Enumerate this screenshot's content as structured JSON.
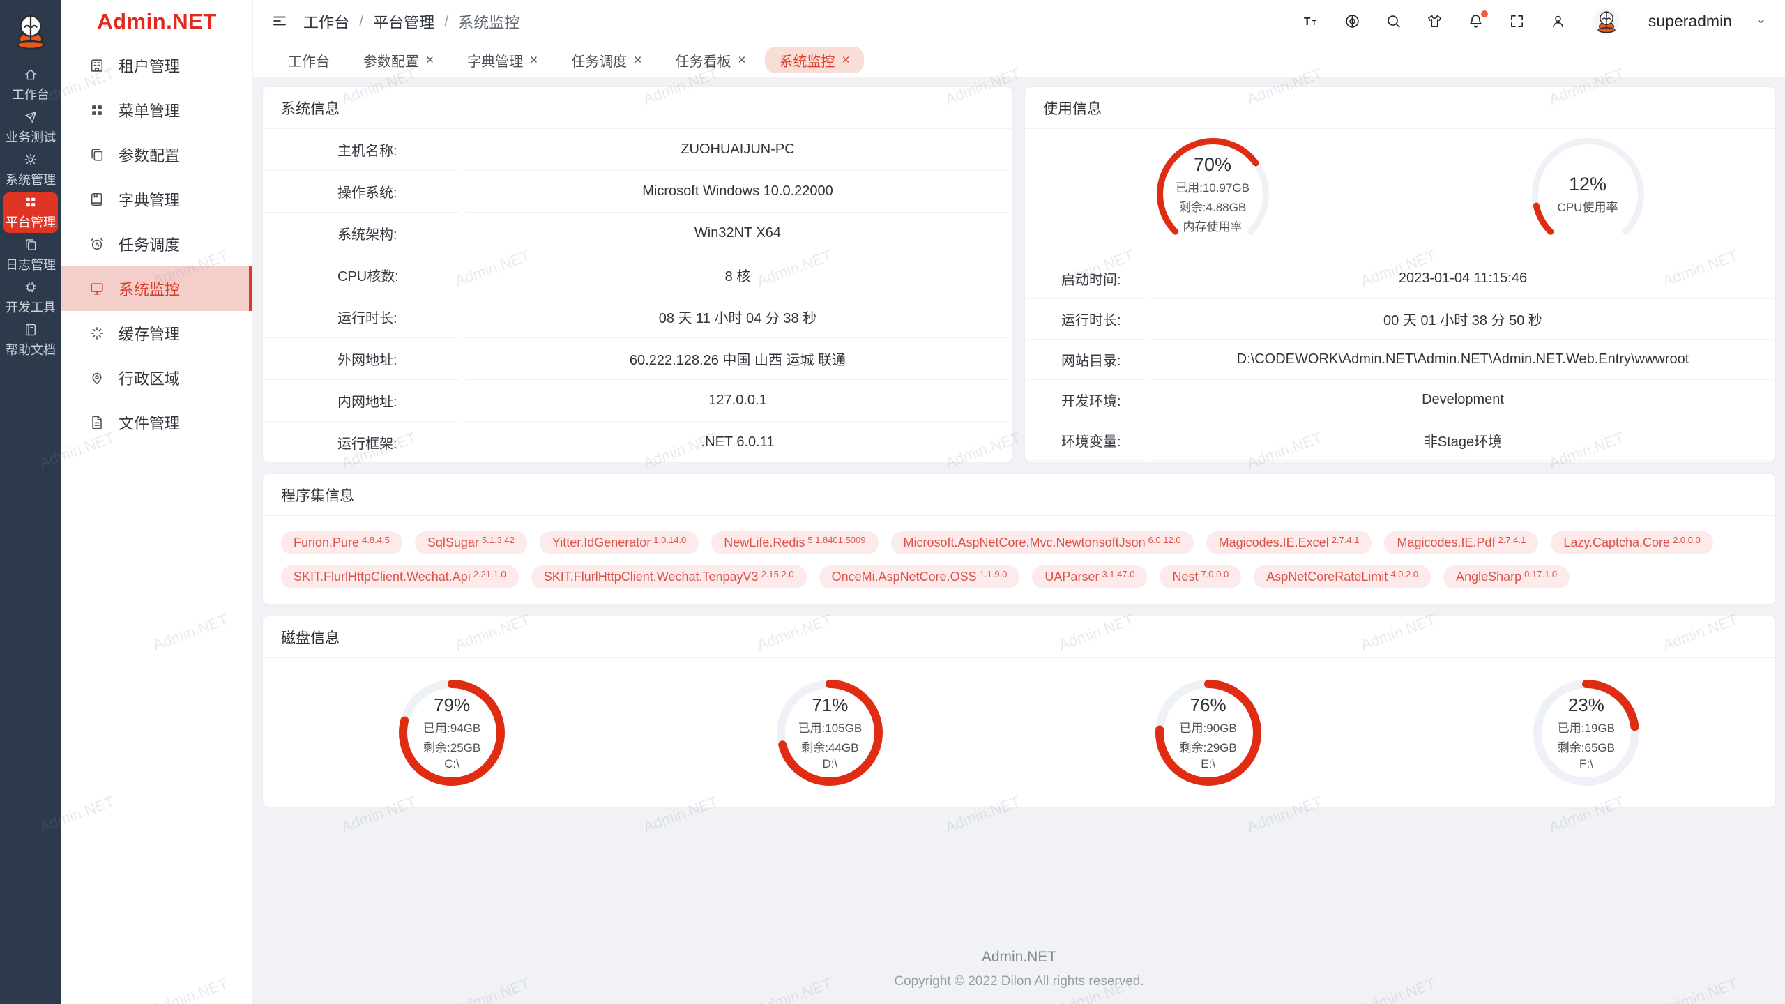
{
  "theme": {
    "accent": "#e03424",
    "ring_red": "#e02c12",
    "ring_track": "#eef1f6",
    "active_pink": "#f4cfc9",
    "tag_bg": "#fcebea",
    "tag_text": "#dd5248",
    "rail_bg": "#2d3a4c"
  },
  "watermark": "Admin.NET",
  "close_glyph": "×",
  "rail": {
    "logo_icon": "mascot",
    "items": [
      {
        "label": "工作台",
        "icon": "home",
        "active": false
      },
      {
        "label": "业务测试",
        "icon": "send",
        "active": false
      },
      {
        "label": "系统管理",
        "icon": "gear",
        "active": false
      },
      {
        "label": "平台管理",
        "icon": "grid",
        "active": true
      },
      {
        "label": "日志管理",
        "icon": "copy-docs",
        "active": false
      },
      {
        "label": "开发工具",
        "icon": "chip",
        "active": false
      },
      {
        "label": "帮助文档",
        "icon": "notebook",
        "active": false
      }
    ]
  },
  "sidebar": {
    "logo_text": "Admin.NET",
    "items": [
      {
        "label": "租户管理",
        "icon": "tenant-building",
        "active": false
      },
      {
        "label": "菜单管理",
        "icon": "menu-grid",
        "active": false
      },
      {
        "label": "参数配置",
        "icon": "params-docs",
        "active": false
      },
      {
        "label": "字典管理",
        "icon": "dict-book",
        "active": false
      },
      {
        "label": "任务调度",
        "icon": "alarm-clock",
        "active": false
      },
      {
        "label": "系统监控",
        "icon": "monitor",
        "active": true
      },
      {
        "label": "缓存管理",
        "icon": "cache-spinner",
        "active": false
      },
      {
        "label": "行政区域",
        "icon": "location-pin",
        "active": false
      },
      {
        "label": "文件管理",
        "icon": "file-doc",
        "active": false
      }
    ]
  },
  "navbar": {
    "hamburger_icon": "hamburger",
    "separator": "/",
    "breadcrumb": [
      {
        "label": "工作台"
      },
      {
        "label": "平台管理"
      },
      {
        "label": "系统监控"
      }
    ],
    "actions": [
      {
        "icon": "font-size"
      },
      {
        "icon": "language"
      },
      {
        "icon": "search"
      },
      {
        "icon": "theme-shirt"
      },
      {
        "icon": "bell",
        "badge": true
      },
      {
        "icon": "fullscreen"
      },
      {
        "icon": "profile"
      }
    ],
    "avatar_icon": "mascot",
    "username": "superadmin",
    "dropdown_icon": "chevron-down"
  },
  "tabs": [
    {
      "label": "工作台",
      "closable": false,
      "active": false
    },
    {
      "label": "参数配置",
      "closable": true,
      "active": false
    },
    {
      "label": "字典管理",
      "closable": true,
      "active": false
    },
    {
      "label": "任务调度",
      "closable": true,
      "active": false
    },
    {
      "label": "任务看板",
      "closable": true,
      "active": false
    },
    {
      "label": "系统监控",
      "closable": true,
      "active": true
    }
  ],
  "system_info": {
    "title": "系统信息",
    "rows": [
      {
        "label": "主机名称:",
        "value": "ZUOHUAIJUN-PC"
      },
      {
        "label": "操作系统:",
        "value": "Microsoft Windows 10.0.22000"
      },
      {
        "label": "系统架构:",
        "value": "Win32NT X64"
      },
      {
        "label": "CPU核数:",
        "value": "8 核"
      },
      {
        "label": "运行时长:",
        "value": "08 天 11 小时 04 分 38 秒"
      },
      {
        "label": "外网地址:",
        "value": "60.222.128.26 中国 山西 运城 联通"
      },
      {
        "label": "内网地址:",
        "value": "127.0.0.1"
      },
      {
        "label": "运行框架:",
        "value": ".NET 6.0.11"
      }
    ]
  },
  "usage_info": {
    "title": "使用信息",
    "gauges": [
      {
        "name": "memory",
        "percent": 70,
        "label": "70%",
        "line1": "已用:10.97GB",
        "line2": "剩余:4.88GB",
        "line3": "内存使用率"
      },
      {
        "name": "cpu",
        "percent": 12,
        "label": "12%",
        "line1": "CPU使用率",
        "line2": "",
        "line3": ""
      }
    ],
    "rows": [
      {
        "label": "启动时间:",
        "value": "2023-01-04 11:15:46"
      },
      {
        "label": "运行时长:",
        "value": "00 天 01 小时 38 分 50 秒"
      },
      {
        "label": "网站目录:",
        "value": "D:\\CODEWORK\\Admin.NET\\Admin.NET\\Admin.NET.Web.Entry\\wwwroot"
      },
      {
        "label": "开发环境:",
        "value": "Development"
      },
      {
        "label": "环境变量:",
        "value": "非Stage环境"
      }
    ]
  },
  "assemblies": {
    "title": "程序集信息",
    "tags": [
      {
        "name": "Furion.Pure",
        "version": "4.8.4.5"
      },
      {
        "name": "SqlSugar",
        "version": "5.1.3.42"
      },
      {
        "name": "Yitter.IdGenerator",
        "version": "1.0.14.0"
      },
      {
        "name": "NewLife.Redis",
        "version": "5.1.8401.5009"
      },
      {
        "name": "Microsoft.AspNetCore.Mvc.NewtonsoftJson",
        "version": "6.0.12.0"
      },
      {
        "name": "Magicodes.IE.Excel",
        "version": "2.7.4.1"
      },
      {
        "name": "Magicodes.IE.Pdf",
        "version": "2.7.4.1"
      },
      {
        "name": "Lazy.Captcha.Core",
        "version": "2.0.0.0"
      },
      {
        "name": "SKIT.FlurlHttpClient.Wechat.Api",
        "version": "2.21.1.0"
      },
      {
        "name": "SKIT.FlurlHttpClient.Wechat.TenpayV3",
        "version": "2.15.2.0"
      },
      {
        "name": "OnceMi.AspNetCore.OSS",
        "version": "1.1.9.0"
      },
      {
        "name": "UAParser",
        "version": "3.1.47.0"
      },
      {
        "name": "Nest",
        "version": "7.0.0.0"
      },
      {
        "name": "AspNetCoreRateLimit",
        "version": "4.0.2.0"
      },
      {
        "name": "AngleSharp",
        "version": "0.17.1.0"
      }
    ]
  },
  "disks": {
    "title": "磁盘信息",
    "items": [
      {
        "percent": 79,
        "label": "79%",
        "line1": "已用:94GB",
        "line2": "剩余:25GB",
        "line3": "C:\\"
      },
      {
        "percent": 71,
        "label": "71%",
        "line1": "已用:105GB",
        "line2": "剩余:44GB",
        "line3": "D:\\"
      },
      {
        "percent": 76,
        "label": "76%",
        "line1": "已用:90GB",
        "line2": "剩余:29GB",
        "line3": "E:\\"
      },
      {
        "percent": 23,
        "label": "23%",
        "line1": "已用:19GB",
        "line2": "剩余:65GB",
        "line3": "F:\\"
      }
    ]
  },
  "footer": {
    "line1": "Admin.NET",
    "line2": "Copyright © 2022 Dilon All rights reserved."
  }
}
